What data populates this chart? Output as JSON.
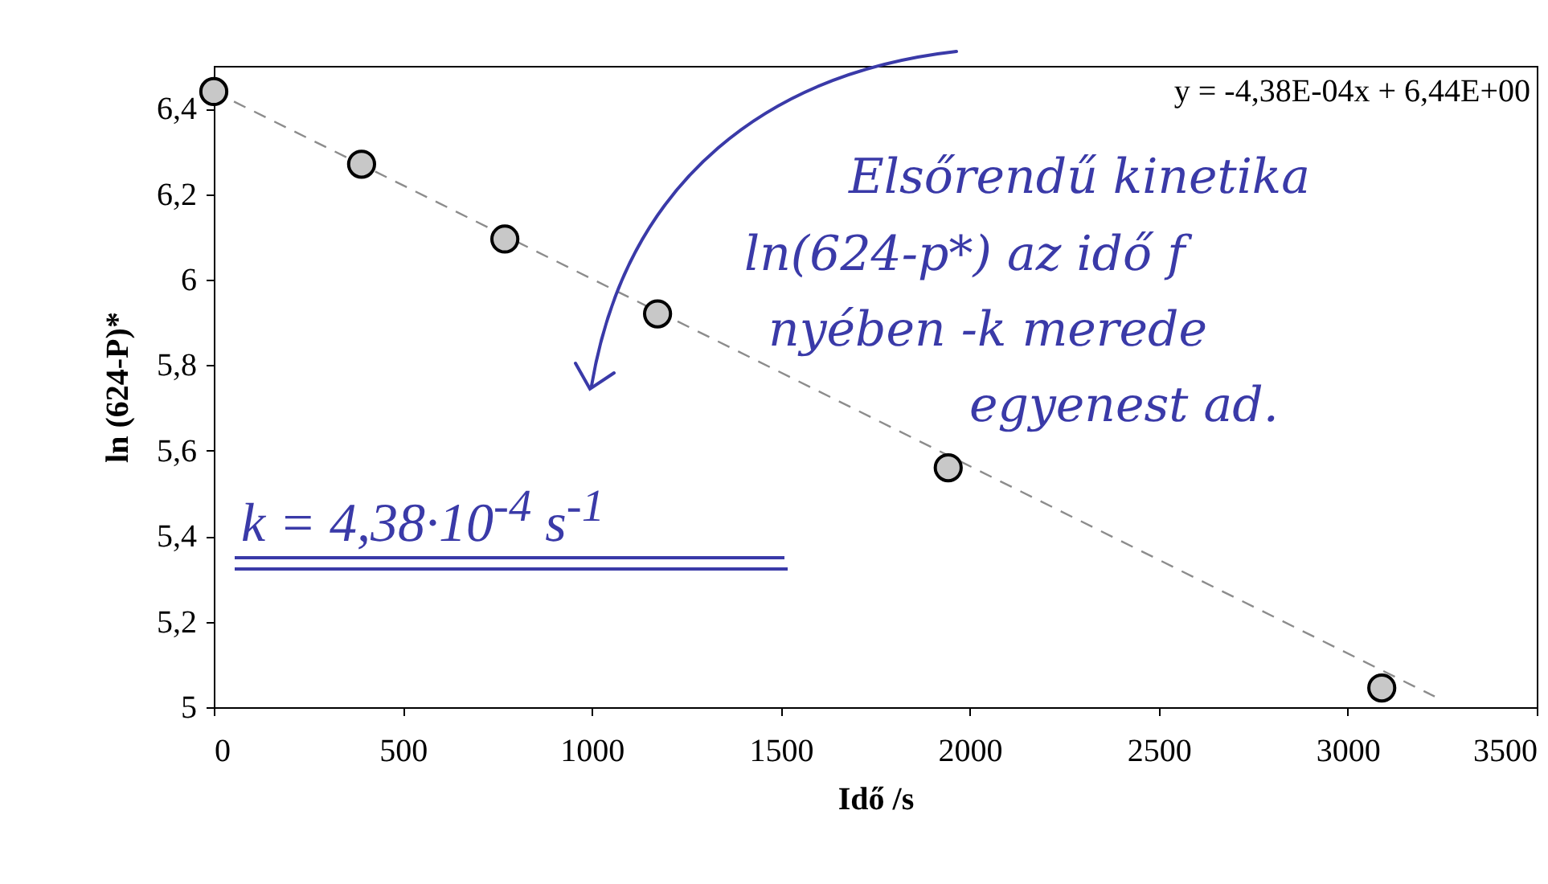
{
  "chart_data": {
    "type": "scatter",
    "xlabel": "Idő /s",
    "ylabel": "ln (624-P)*",
    "x": [
      0,
      391,
      770,
      1174,
      1943,
      3090
    ],
    "series": [
      {
        "color": "#c8c8c8",
        "values": [
          6.44,
          6.27,
          6.095,
          5.92,
          5.56,
          5.045
        ],
        "marker": "circle"
      },
      {
        "type": "line",
        "color": "#8c8c8c",
        "x": [
          0,
          3230
        ],
        "values": [
          6.44,
          5.025
        ],
        "line_style": "dashed",
        "marker": "none"
      }
    ],
    "xlim": [
      0,
      3500
    ],
    "xticks": [
      0,
      500,
      1000,
      1500,
      2000,
      2500,
      3000,
      3500
    ],
    "ylim": [
      5,
      6.5
    ],
    "yticks": [
      {
        "value": 5,
        "label": "5"
      },
      {
        "value": 5.2,
        "label": "5,2"
      },
      {
        "value": 5.4,
        "label": "5,4"
      },
      {
        "value": 5.6,
        "label": "5,6"
      },
      {
        "value": 5.8,
        "label": "5,8"
      },
      {
        "value": 6,
        "label": "6"
      },
      {
        "value": 6.2,
        "label": "6,2"
      },
      {
        "value": 6.4,
        "label": "6,4"
      }
    ],
    "grid": false,
    "annotations": [
      "y = -4,38E-04x + 6,44E+00",
      "Elsőrendű kinetika",
      "ln(624-p*) az idő f",
      "nyében -k merede",
      "egyenest ad.",
      "k = 4,38·10$^{-4}$ s$^{-1}$"
    ]
  }
}
